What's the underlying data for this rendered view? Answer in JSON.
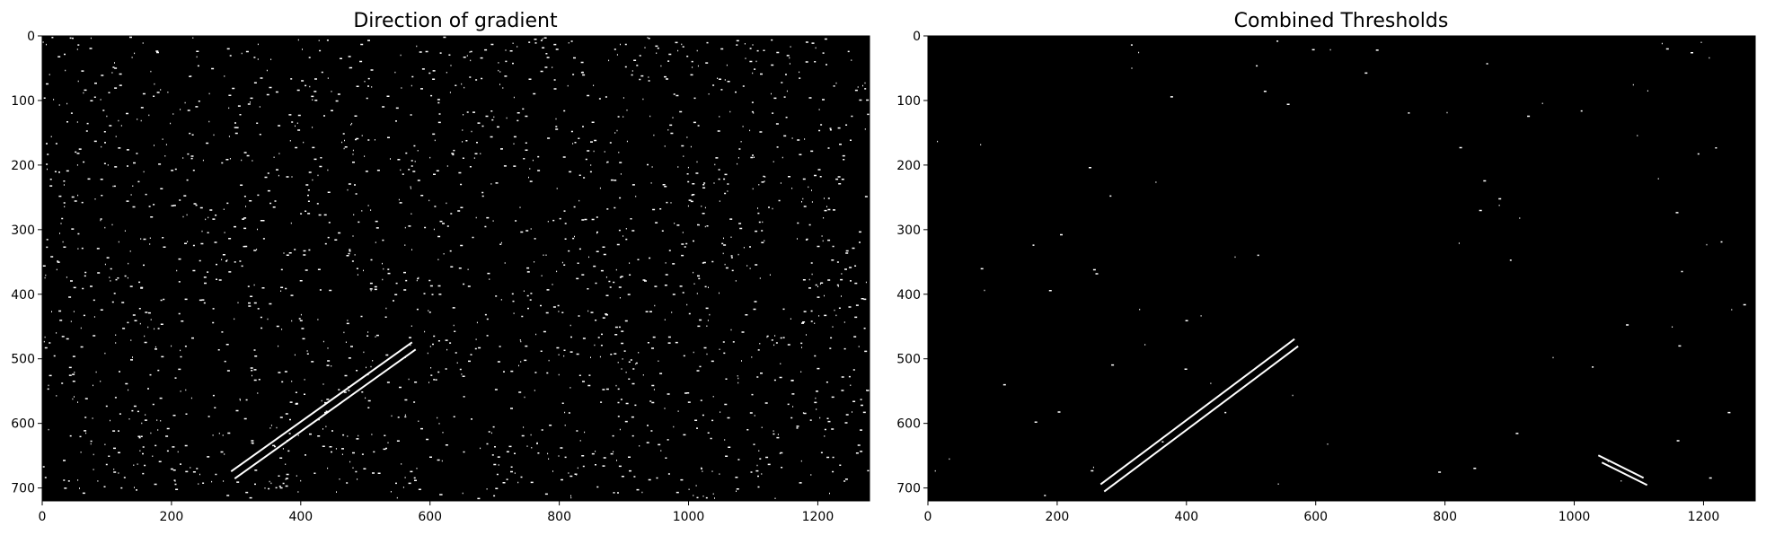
{
  "chart_data": [
    {
      "type": "heatmap",
      "image": "binary thresholded image (white noise speckle over black)",
      "title": "Direction of gradient",
      "xlim": [
        0,
        1280
      ],
      "ylim": [
        720,
        0
      ],
      "xticks": [
        0,
        200,
        400,
        600,
        800,
        1000,
        1200
      ],
      "yticks": [
        0,
        100,
        200,
        300,
        400,
        500,
        600,
        700
      ],
      "lane_lines": [
        {
          "x1": 295,
          "y1": 680,
          "x2": 575,
          "y2": 480
        }
      ],
      "noise_density": 0.22
    },
    {
      "type": "heatmap",
      "image": "binary thresholded image (lane lines and sparse edges on black)",
      "title": "Combined Thresholds",
      "xlim": [
        0,
        1280
      ],
      "ylim": [
        720,
        0
      ],
      "xticks": [
        0,
        200,
        400,
        600,
        800,
        1000,
        1200
      ],
      "yticks": [
        0,
        100,
        200,
        300,
        400,
        500,
        600,
        700
      ],
      "lane_lines": [
        {
          "x1": 270,
          "y1": 700,
          "x2": 570,
          "y2": 475
        },
        {
          "x1": 1040,
          "y1": 655,
          "x2": 1110,
          "y2": 690
        }
      ],
      "noise_density": 0.01
    }
  ],
  "colors": {
    "background": "#000000",
    "pixel": "#ffffff",
    "frame": "#000000"
  }
}
